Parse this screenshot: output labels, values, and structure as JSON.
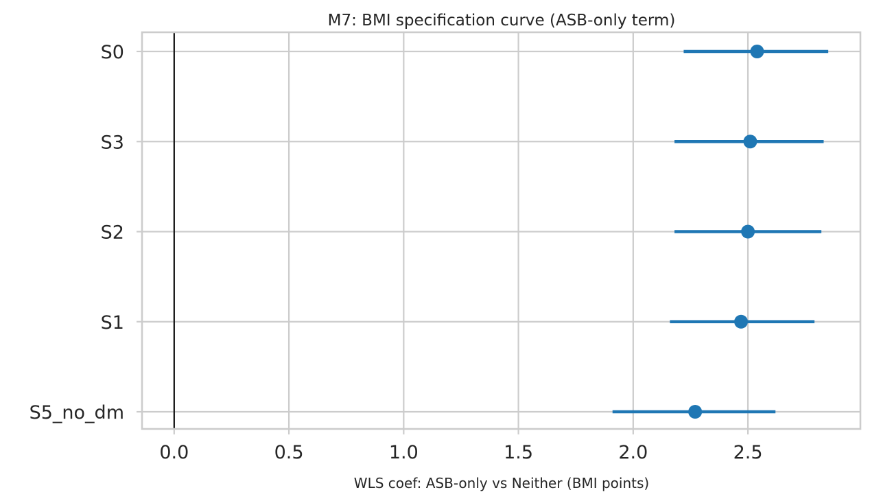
{
  "chart_data": {
    "type": "scatter",
    "subtype": "forest-plot",
    "title": "M7: BMI specification curve (ASB-only term)",
    "xlabel": "WLS coef: ASB-only vs Neither (BMI points)",
    "ylabel": "",
    "xlim": [
      -0.14,
      2.99
    ],
    "xticks": [
      0.0,
      0.5,
      1.0,
      1.5,
      2.0,
      2.5
    ],
    "xtick_labels": [
      "0.0",
      "0.5",
      "1.0",
      "1.5",
      "2.0",
      "2.5"
    ],
    "reference_line_x": 0,
    "grid": true,
    "color": "#1f77b4",
    "reference_color": "#000000",
    "specs": [
      {
        "label": "S0",
        "coef": 2.54,
        "ci_low": 2.22,
        "ci_high": 2.85
      },
      {
        "label": "S3",
        "coef": 2.51,
        "ci_low": 2.18,
        "ci_high": 2.83
      },
      {
        "label": "S2",
        "coef": 2.5,
        "ci_low": 2.18,
        "ci_high": 2.82
      },
      {
        "label": "S1",
        "coef": 2.47,
        "ci_low": 2.16,
        "ci_high": 2.79
      },
      {
        "label": "S5_no_dm",
        "coef": 2.27,
        "ci_low": 1.91,
        "ci_high": 2.62
      }
    ]
  }
}
